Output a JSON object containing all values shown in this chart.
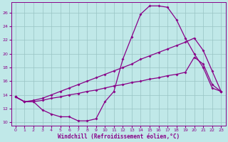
{
  "xlabel": "Windchill (Refroidissement éolien,°C)",
  "bg_color": "#c0e8e8",
  "grid_color": "#98c4c4",
  "line_color": "#880088",
  "x_ticks": [
    0,
    1,
    2,
    3,
    4,
    5,
    6,
    7,
    8,
    9,
    10,
    11,
    12,
    13,
    14,
    15,
    16,
    17,
    18,
    19,
    20,
    21,
    22,
    23
  ],
  "y_ticks": [
    10,
    12,
    14,
    16,
    18,
    20,
    22,
    24,
    26
  ],
  "x_min": -0.5,
  "x_max": 23.5,
  "y_min": 9.5,
  "y_max": 27.5,
  "curve1_x": [
    0,
    1,
    2,
    3,
    4,
    5,
    6,
    7,
    8,
    9,
    10,
    11,
    12,
    13,
    14,
    15,
    16,
    17,
    18,
    19,
    20,
    21,
    22,
    23
  ],
  "curve1_y": [
    13.7,
    13.0,
    13.0,
    11.8,
    11.2,
    10.8,
    10.8,
    10.2,
    10.2,
    10.5,
    13.0,
    14.5,
    19.2,
    22.5,
    25.8,
    27.0,
    27.0,
    26.8,
    25.0,
    22.3,
    20.0,
    18.0,
    15.0,
    14.5
  ],
  "curve2_x": [
    0,
    1,
    2,
    3,
    4,
    5,
    6,
    7,
    8,
    9,
    10,
    11,
    12,
    13,
    14,
    15,
    16,
    17,
    18,
    19,
    20,
    21,
    22,
    23
  ],
  "curve2_y": [
    13.7,
    13.0,
    13.2,
    13.5,
    14.0,
    14.5,
    15.0,
    15.5,
    16.0,
    16.5,
    17.0,
    17.5,
    18.0,
    18.5,
    19.2,
    19.7,
    20.2,
    20.7,
    21.2,
    21.7,
    22.3,
    20.5,
    17.5,
    14.5
  ],
  "curve3_x": [
    0,
    1,
    2,
    3,
    4,
    5,
    6,
    7,
    8,
    9,
    10,
    11,
    12,
    13,
    14,
    15,
    16,
    17,
    18,
    19,
    20,
    21,
    22,
    23
  ],
  "curve3_y": [
    13.7,
    13.0,
    13.0,
    13.2,
    13.5,
    13.7,
    14.0,
    14.2,
    14.5,
    14.7,
    15.0,
    15.3,
    15.5,
    15.8,
    16.0,
    16.3,
    16.5,
    16.8,
    17.0,
    17.3,
    19.5,
    18.5,
    15.5,
    14.5
  ]
}
